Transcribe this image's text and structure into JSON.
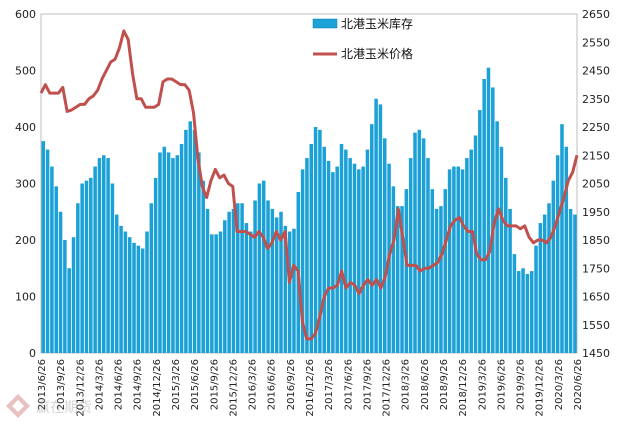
{
  "chart_data": {
    "type": "bar+line",
    "title": "",
    "left_axis": {
      "min": 0,
      "max": 600,
      "ticks": [
        "0",
        "100",
        "200",
        "300",
        "400",
        "500",
        "600"
      ]
    },
    "right_axis": {
      "min": 1450,
      "max": 2650,
      "ticks": [
        "1450",
        "1550",
        "1650",
        "1750",
        "1850",
        "1950",
        "2050",
        "2150",
        "2250",
        "2350",
        "2450",
        "2550",
        "2650"
      ]
    },
    "x_tick_labels": [
      "2013/6/26",
      "2013/9/26",
      "2013/12/26",
      "2014/3/26",
      "2014/6/26",
      "2014/9/26",
      "2014/12/26",
      "2015/3/26",
      "2015/6/26",
      "2015/9/26",
      "2015/12/26",
      "2016/3/26",
      "2016/6/26",
      "2016/9/26",
      "2016/12/26",
      "2017/3/26",
      "2017/6/26",
      "2017/9/26",
      "2017/12/26",
      "2018/3/26",
      "2018/6/26",
      "2018/9/26",
      "2018/12/26",
      "2019/3/26",
      "2019/6/26",
      "2019/9/26",
      "2019/12/26",
      "2020/3/26",
      "2020/6/26"
    ],
    "legend": {
      "position": "top-center",
      "entries": [
        "北港玉米库存",
        "北港玉米价格"
      ]
    },
    "series": [
      {
        "name": "北港玉米库存",
        "type": "bar",
        "axis": "left",
        "color": "#1ba1d6",
        "values": [
          375,
          360,
          330,
          295,
          250,
          200,
          150,
          205,
          265,
          300,
          305,
          310,
          330,
          345,
          350,
          345,
          300,
          245,
          225,
          215,
          205,
          195,
          190,
          185,
          215,
          265,
          310,
          355,
          365,
          355,
          345,
          350,
          370,
          395,
          410,
          395,
          355,
          305,
          255,
          210,
          210,
          215,
          235,
          250,
          255,
          265,
          265,
          230,
          215,
          270,
          300,
          305,
          270,
          255,
          240,
          250,
          225,
          215,
          220,
          285,
          325,
          345,
          370,
          400,
          395,
          365,
          340,
          320,
          330,
          370,
          360,
          345,
          335,
          325,
          330,
          360,
          405,
          450,
          440,
          380,
          335,
          295,
          260,
          260,
          290,
          345,
          390,
          395,
          380,
          345,
          290,
          255,
          260,
          290,
          325,
          330,
          330,
          325,
          345,
          360,
          385,
          430,
          485,
          505,
          470,
          410,
          365,
          310,
          255,
          175,
          145,
          150,
          140,
          145,
          190,
          230,
          245,
          265,
          305,
          350,
          405,
          365,
          255,
          245
        ]
      },
      {
        "name": "北港玉米价格",
        "type": "line",
        "axis": "right",
        "color": "#c0504d",
        "values": [
          2370,
          2400,
          2370,
          2370,
          2370,
          2390,
          2305,
          2310,
          2320,
          2330,
          2330,
          2350,
          2360,
          2380,
          2420,
          2450,
          2480,
          2490,
          2530,
          2590,
          2560,
          2440,
          2350,
          2350,
          2320,
          2320,
          2320,
          2330,
          2410,
          2420,
          2420,
          2410,
          2400,
          2400,
          2380,
          2300,
          2140,
          2040,
          2000,
          2060,
          2100,
          2070,
          2080,
          2050,
          2040,
          1880,
          1880,
          1880,
          1870,
          1860,
          1880,
          1860,
          1820,
          1840,
          1880,
          1850,
          1880,
          1700,
          1760,
          1740,
          1560,
          1500,
          1500,
          1520,
          1580,
          1650,
          1680,
          1680,
          1690,
          1740,
          1680,
          1700,
          1690,
          1660,
          1690,
          1710,
          1690,
          1710,
          1680,
          1720,
          1800,
          1850,
          1960,
          1860,
          1760,
          1760,
          1760,
          1740,
          1750,
          1750,
          1760,
          1770,
          1800,
          1850,
          1900,
          1920,
          1930,
          1900,
          1880,
          1880,
          1800,
          1780,
          1780,
          1810,
          1910,
          1960,
          1920,
          1900,
          1900,
          1900,
          1890,
          1900,
          1860,
          1840,
          1850,
          1850,
          1840,
          1860,
          1900,
          1950,
          2000,
          2060,
          2090,
          2150
        ]
      }
    ]
  },
  "watermark": {
    "text": "赢在期货"
  }
}
